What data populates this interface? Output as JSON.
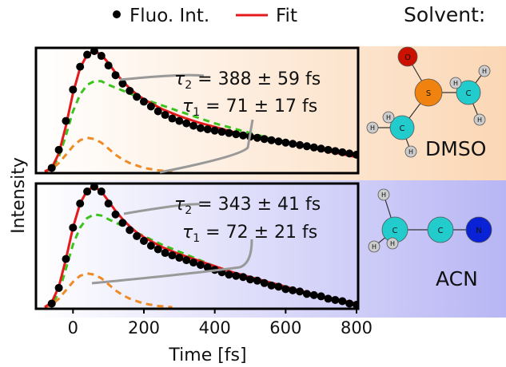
{
  "legend": {
    "marker_label": "Fluo. Int.",
    "fit_label": "Fit",
    "solvent_label": "Solvent:"
  },
  "axes": {
    "xlabel": "Time [fs]",
    "ylabel": "Intensity",
    "xlim": [
      -100,
      800
    ],
    "xticks": [
      "0",
      "200",
      "400",
      "600",
      "800"
    ]
  },
  "colors": {
    "data": "#000000",
    "fit": "#e41a1c",
    "long_component": "#3cc31e",
    "short_component": "#f08a24",
    "leader": "#999999",
    "panel_top_bg": "#fbd7b5",
    "panel_bottom_bg": "#b8b6f4",
    "oxygen": "#cc1100",
    "sulfur": "#f0820f",
    "carbon": "#22cccc",
    "hydrogen": "#cccccc",
    "nitrogen": "#0a22d6"
  },
  "panels": [
    {
      "solvent": "DMSO",
      "tau2": {
        "sym": "τ",
        "sub": "2",
        "text": " = 388 ± 59 fs"
      },
      "tau1": {
        "sym": "τ",
        "sub": "1",
        "text": " = 71 ± 17 fs"
      },
      "molecule": {
        "atoms": [
          {
            "el": "O",
            "name": "oxygen-atom"
          },
          {
            "el": "S",
            "name": "sulfur-atom"
          },
          {
            "el": "C",
            "name": "carbon-atom"
          },
          {
            "el": "C",
            "name": "carbon-atom"
          },
          {
            "el": "H",
            "name": "hydrogen-atom"
          },
          {
            "el": "H",
            "name": "hydrogen-atom"
          },
          {
            "el": "H",
            "name": "hydrogen-atom"
          },
          {
            "el": "H",
            "name": "hydrogen-atom"
          },
          {
            "el": "H",
            "name": "hydrogen-atom"
          },
          {
            "el": "H",
            "name": "hydrogen-atom"
          }
        ]
      }
    },
    {
      "solvent": "ACN",
      "tau2": {
        "sym": "τ",
        "sub": "2",
        "text": " = 343 ± 41 fs"
      },
      "tau1": {
        "sym": "τ",
        "sub": "1",
        "text": " = 72 ± 21 fs"
      },
      "molecule": {
        "atoms": [
          {
            "el": "C",
            "name": "carbon-atom"
          },
          {
            "el": "C",
            "name": "carbon-atom"
          },
          {
            "el": "N",
            "name": "nitrogen-atom"
          },
          {
            "el": "H",
            "name": "hydrogen-atom"
          },
          {
            "el": "H",
            "name": "hydrogen-atom"
          },
          {
            "el": "H",
            "name": "hydrogen-atom"
          }
        ]
      }
    }
  ],
  "chart_data": [
    {
      "type": "line",
      "panel": "DMSO",
      "xlabel": "Time [fs]",
      "ylabel": "Intensity",
      "xlim": [
        -100,
        800
      ],
      "ylim": [
        0,
        1
      ],
      "series": [
        {
          "name": "Fluo. Int.",
          "kind": "scatter",
          "x": [
            -60,
            -40,
            -20,
            0,
            20,
            40,
            60,
            80,
            100,
            120,
            140,
            160,
            180,
            200,
            220,
            240,
            260,
            280,
            300,
            320,
            340,
            360,
            380,
            400,
            420,
            440,
            460,
            480,
            500,
            520,
            540,
            560,
            580,
            600,
            620,
            640,
            660,
            680,
            700,
            720,
            740,
            760,
            780,
            800
          ],
          "y": [
            0.03,
            0.18,
            0.42,
            0.68,
            0.87,
            0.97,
            1.0,
            0.96,
            0.88,
            0.8,
            0.73,
            0.67,
            0.62,
            0.58,
            0.54,
            0.5,
            0.47,
            0.44,
            0.42,
            0.4,
            0.38,
            0.36,
            0.35,
            0.34,
            0.33,
            0.32,
            0.31,
            0.3,
            0.29,
            0.28,
            0.27,
            0.26,
            0.25,
            0.24,
            0.23,
            0.22,
            0.21,
            0.2,
            0.19,
            0.18,
            0.17,
            0.16,
            0.15,
            0.14
          ]
        },
        {
          "name": "Fit",
          "x": [
            -80,
            -60,
            -40,
            -20,
            0,
            20,
            40,
            60,
            80,
            100,
            120,
            140,
            160,
            180,
            200,
            250,
            300,
            350,
            400,
            450,
            500,
            550,
            600,
            650,
            700,
            750,
            800
          ],
          "y": [
            0.0,
            0.03,
            0.15,
            0.38,
            0.65,
            0.86,
            0.97,
            1.0,
            0.97,
            0.9,
            0.82,
            0.75,
            0.69,
            0.64,
            0.6,
            0.52,
            0.46,
            0.41,
            0.37,
            0.33,
            0.3,
            0.27,
            0.24,
            0.21,
            0.18,
            0.15,
            0.12
          ]
        },
        {
          "kind": "dashed",
          "x": [
            -80,
            -60,
            -40,
            -20,
            0,
            20,
            40,
            60,
            80,
            100,
            150,
            200,
            250,
            300,
            350,
            400,
            450,
            500,
            550,
            600,
            650,
            700,
            750,
            800
          ],
          "y": [
            0.0,
            0.02,
            0.12,
            0.3,
            0.5,
            0.64,
            0.72,
            0.75,
            0.75,
            0.72,
            0.66,
            0.6,
            0.55,
            0.5,
            0.45,
            0.4,
            0.36,
            0.32,
            0.28,
            0.25,
            0.22,
            0.19,
            0.16,
            0.14
          ]
        },
        {
          "kind": "dashed",
          "x": [
            -80,
            -60,
            -40,
            -20,
            0,
            20,
            40,
            60,
            80,
            100,
            120,
            140,
            160,
            180,
            200,
            220,
            240,
            260,
            280
          ],
          "y": [
            0.0,
            0.02,
            0.07,
            0.14,
            0.21,
            0.26,
            0.28,
            0.27,
            0.24,
            0.19,
            0.14,
            0.1,
            0.07,
            0.05,
            0.03,
            0.02,
            0.01,
            0.005,
            0.0
          ]
        }
      ]
    },
    {
      "type": "line",
      "panel": "ACN",
      "xlabel": "Time [fs]",
      "ylabel": "Intensity",
      "xlim": [
        -100,
        800
      ],
      "ylim": [
        0,
        1
      ],
      "series": [
        {
          "name": "Fluo. Int.",
          "kind": "scatter",
          "x": [
            -60,
            -40,
            -20,
            0,
            20,
            40,
            60,
            80,
            100,
            120,
            140,
            160,
            180,
            200,
            220,
            240,
            260,
            280,
            300,
            320,
            340,
            360,
            380,
            400,
            420,
            440,
            460,
            480,
            500,
            520,
            540,
            560,
            580,
            600,
            620,
            640,
            660,
            680,
            700,
            720,
            740,
            760,
            780,
            800
          ],
          "y": [
            0.03,
            0.16,
            0.4,
            0.66,
            0.86,
            0.96,
            1.0,
            0.96,
            0.86,
            0.77,
            0.7,
            0.64,
            0.59,
            0.55,
            0.51,
            0.48,
            0.45,
            0.43,
            0.41,
            0.39,
            0.37,
            0.35,
            0.33,
            0.31,
            0.29,
            0.27,
            0.26,
            0.25,
            0.23,
            0.22,
            0.2,
            0.18,
            0.17,
            0.15,
            0.14,
            0.13,
            0.11,
            0.1,
            0.09,
            0.07,
            0.06,
            0.05,
            0.03,
            0.02
          ]
        },
        {
          "name": "Fit",
          "x": [
            -80,
            -60,
            -40,
            -20,
            0,
            20,
            40,
            60,
            80,
            100,
            120,
            140,
            160,
            180,
            200,
            250,
            300,
            350,
            400,
            450,
            500,
            550,
            600,
            650,
            700,
            750,
            800
          ],
          "y": [
            0.0,
            0.04,
            0.17,
            0.4,
            0.66,
            0.86,
            0.97,
            1.0,
            0.96,
            0.88,
            0.8,
            0.73,
            0.67,
            0.62,
            0.58,
            0.5,
            0.44,
            0.39,
            0.34,
            0.29,
            0.25,
            0.21,
            0.17,
            0.13,
            0.09,
            0.06,
            0.03
          ]
        },
        {
          "kind": "dashed",
          "x": [
            -80,
            -60,
            -40,
            -20,
            0,
            20,
            40,
            60,
            80,
            100,
            150,
            200,
            250,
            300,
            350,
            400,
            450,
            500,
            550,
            600,
            650,
            700,
            750,
            800
          ],
          "y": [
            0.0,
            0.02,
            0.12,
            0.32,
            0.52,
            0.66,
            0.74,
            0.77,
            0.76,
            0.73,
            0.66,
            0.59,
            0.52,
            0.46,
            0.4,
            0.34,
            0.29,
            0.24,
            0.2,
            0.16,
            0.12,
            0.08,
            0.05,
            0.02
          ]
        },
        {
          "kind": "dashed",
          "x": [
            -80,
            -60,
            -40,
            -20,
            0,
            20,
            40,
            60,
            80,
            100,
            120,
            140,
            160,
            180,
            200,
            220,
            240,
            260,
            280
          ],
          "y": [
            0.0,
            0.02,
            0.07,
            0.14,
            0.21,
            0.26,
            0.28,
            0.27,
            0.24,
            0.19,
            0.14,
            0.1,
            0.07,
            0.05,
            0.03,
            0.02,
            0.01,
            0.005,
            0.0
          ]
        }
      ]
    }
  ]
}
